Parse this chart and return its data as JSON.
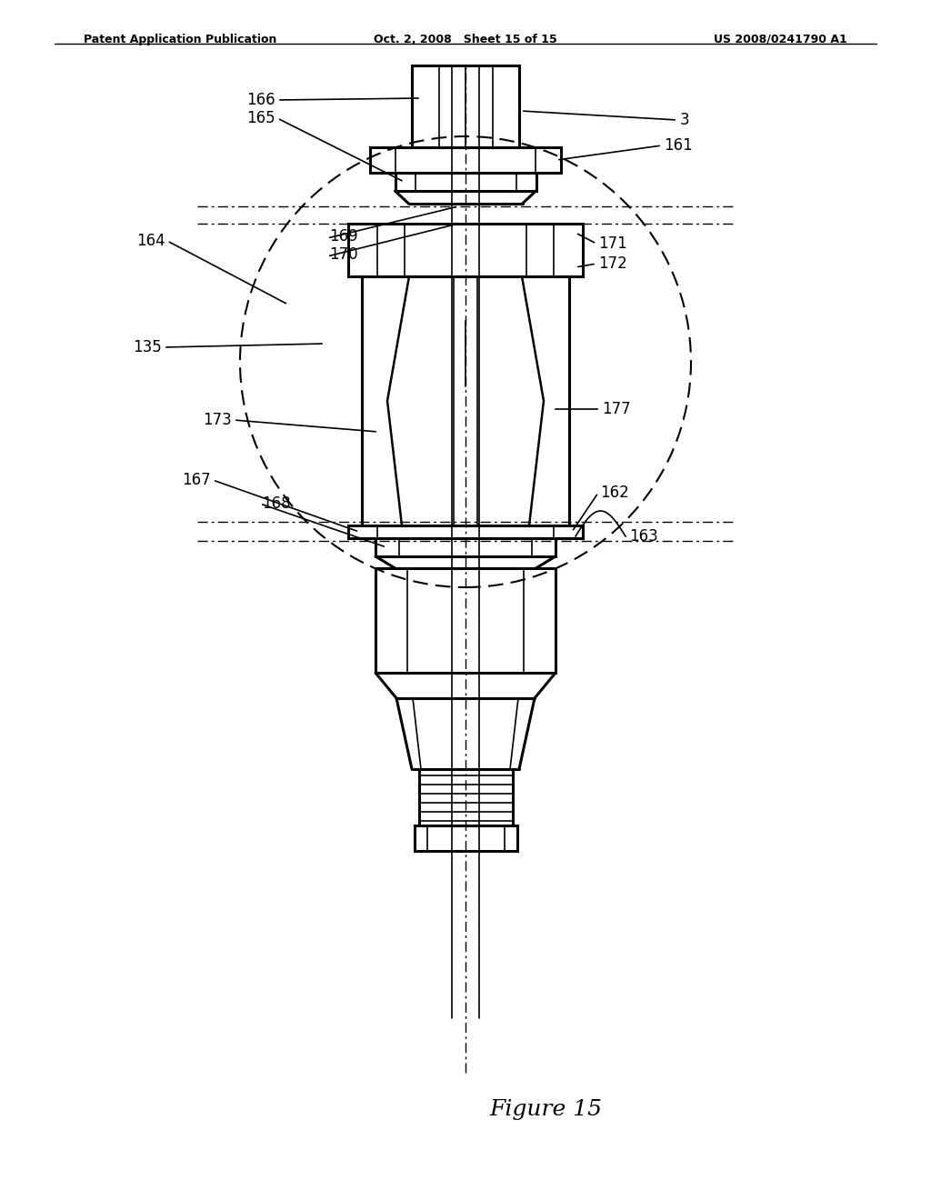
{
  "bg_color": "#ffffff",
  "line_color": "#000000",
  "header_left": "Patent Application Publication",
  "header_mid": "Oct. 2, 2008   Sheet 15 of 15",
  "header_right": "US 2008/0241790 A1",
  "figure_label": "Figure 15"
}
